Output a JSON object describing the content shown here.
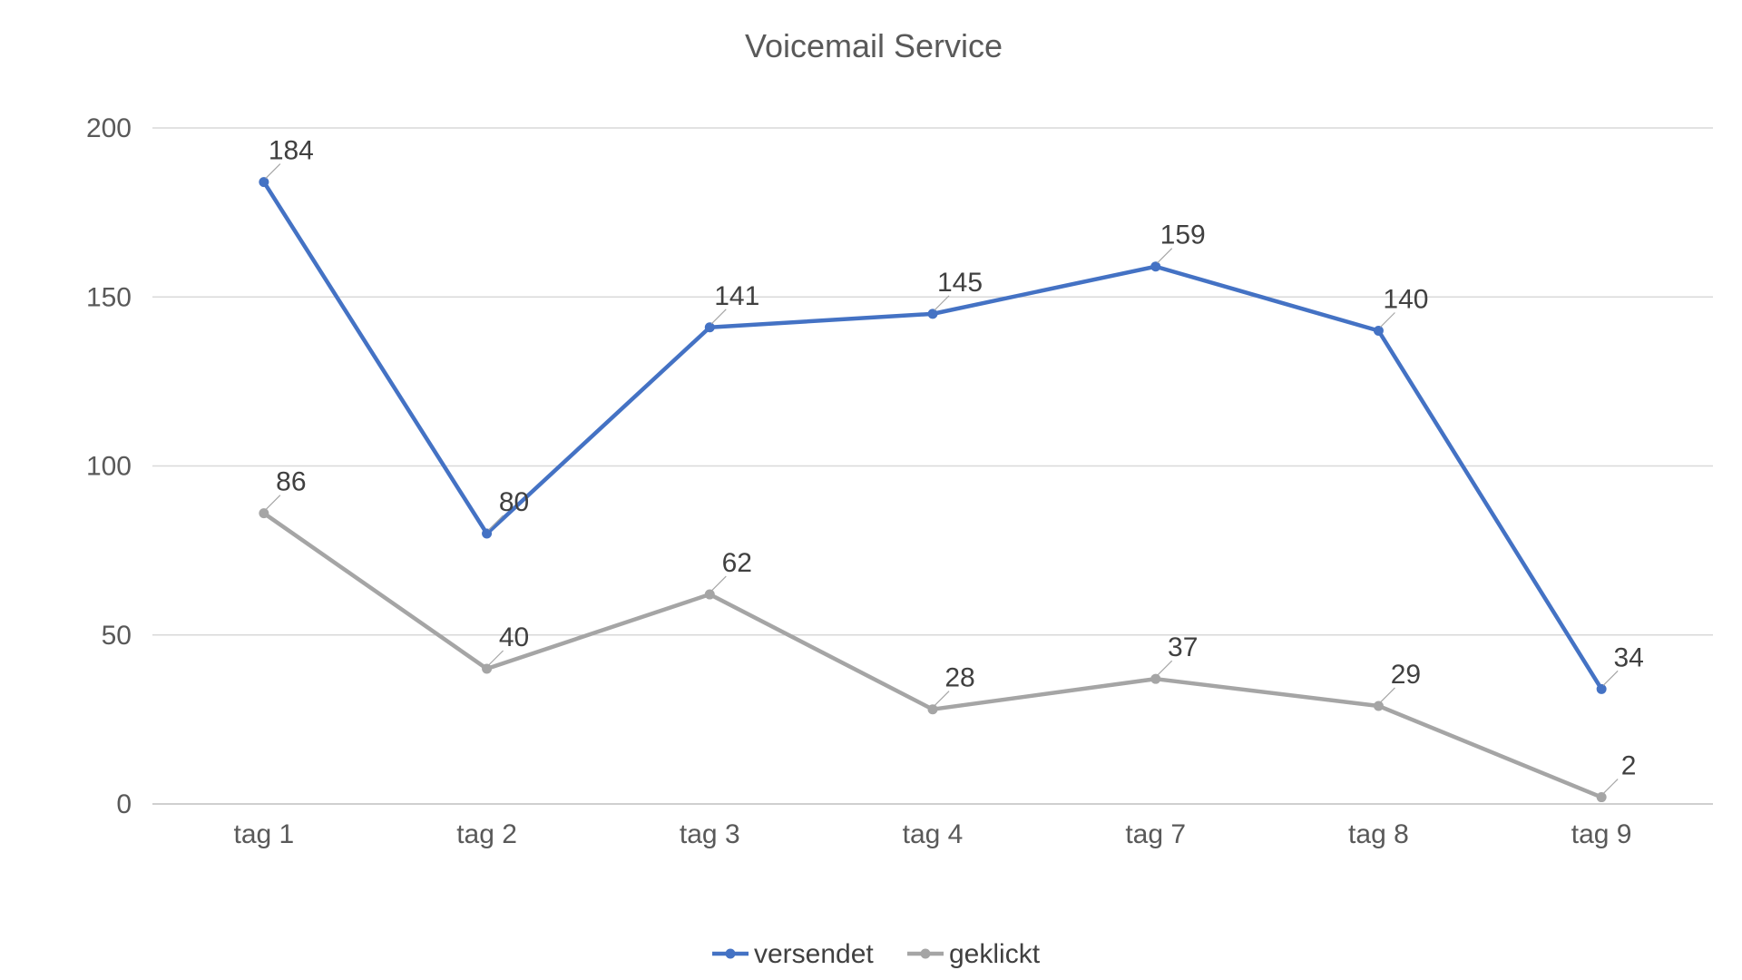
{
  "chart_data": {
    "type": "line",
    "title": "Voicemail Service",
    "xlabel": "",
    "ylabel": "",
    "categories": [
      "tag 1",
      "tag 2",
      "tag 3",
      "tag 4",
      "tag 7",
      "tag 8",
      "tag 9"
    ],
    "ylim": [
      0,
      200
    ],
    "yticks": [
      0,
      50,
      100,
      150,
      200
    ],
    "grid": true,
    "legend_position": "bottom",
    "series": [
      {
        "name": "versendet",
        "color": "#4472C4",
        "values": [
          184,
          80,
          141,
          145,
          159,
          140,
          34
        ]
      },
      {
        "name": "geklickt",
        "color": "#A5A5A5",
        "values": [
          86,
          40,
          62,
          28,
          37,
          29,
          2
        ]
      }
    ]
  }
}
